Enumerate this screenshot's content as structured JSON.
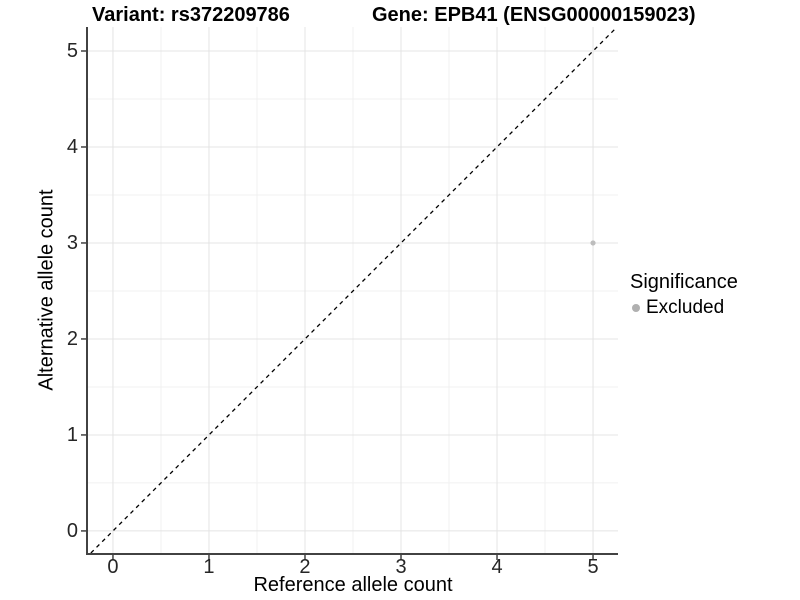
{
  "chart_data": {
    "type": "scatter",
    "titles": {
      "variant": "Variant: rs372209786",
      "gene": "Gene: EPB41 (ENSG00000159023)"
    },
    "xlabel": "Reference allele count",
    "ylabel": "Alternative allele count",
    "xticks": [
      0,
      1,
      2,
      3,
      4,
      5
    ],
    "yticks": [
      0,
      1,
      2,
      3,
      4,
      5
    ],
    "xlim": [
      -0.26,
      5.26
    ],
    "ylim": [
      -0.23,
      5.25
    ],
    "grid": {
      "major": true,
      "minor": true
    },
    "identity_line": {
      "slope": 1,
      "intercept": 0,
      "style": "dashed",
      "color": "#000000"
    },
    "series": [
      {
        "name": "Excluded",
        "color": "#bdbdbd",
        "points": [
          {
            "x": 5,
            "y": 3
          }
        ]
      }
    ],
    "legend": {
      "title": "Significance",
      "position": "right",
      "entries": [
        {
          "label": "Excluded",
          "color": "#b0b0b0"
        }
      ]
    },
    "colors": {
      "background": "#ffffff",
      "grid_major": "#e4e4e4",
      "grid_minor": "#f1f1f1",
      "axis_line": "#424242",
      "tick_mark": "#424242",
      "tick_label": "#262626",
      "title_text": "#000000"
    }
  }
}
